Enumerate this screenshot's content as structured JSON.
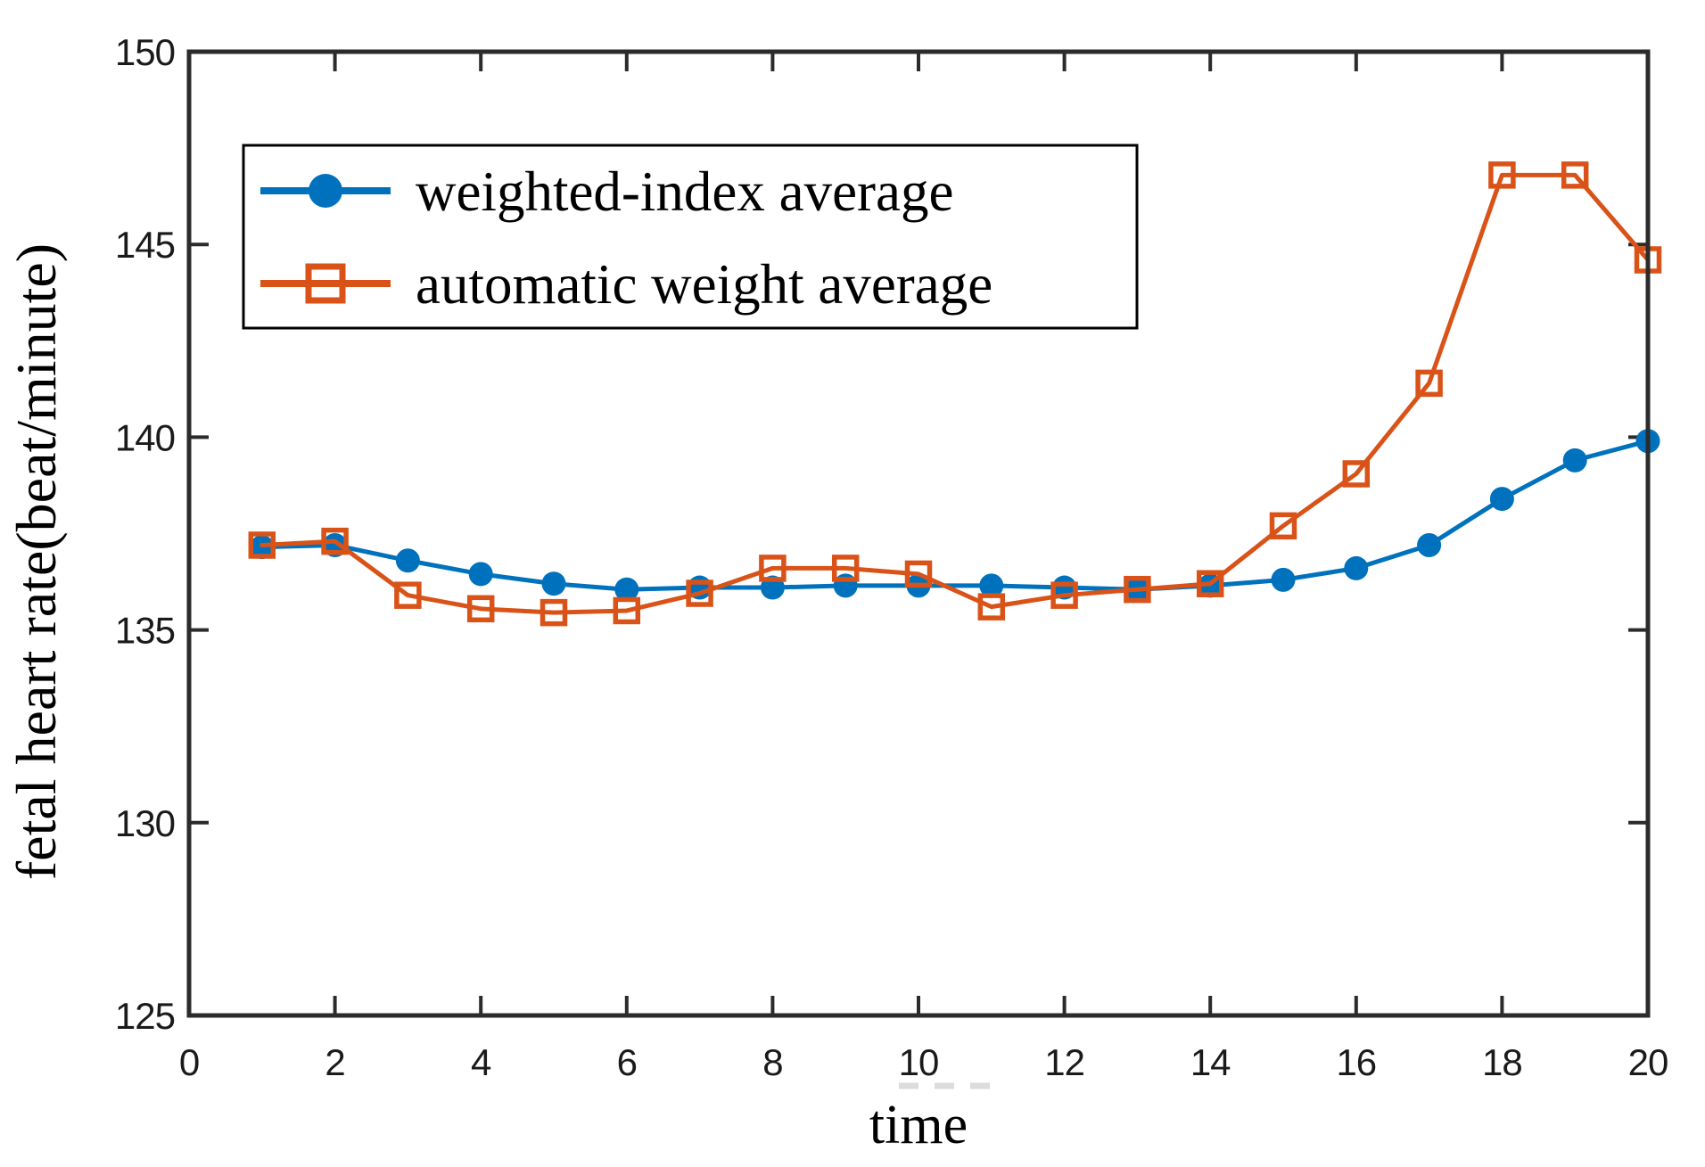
{
  "figure": {
    "background": "#ffffff",
    "axis_color": "#2b2b2b"
  },
  "chart_data": {
    "type": "line",
    "title": "",
    "xlabel": "time",
    "ylabel": "fetal heart rate(beat/minute)",
    "xlim": [
      0,
      20
    ],
    "ylim": [
      125,
      150
    ],
    "xticks": [
      0,
      2,
      4,
      6,
      8,
      10,
      12,
      14,
      16,
      18,
      20
    ],
    "yticks": [
      125,
      130,
      135,
      140,
      145,
      150
    ],
    "grid": false,
    "box": true,
    "tick_direction": "in",
    "legend_position": "upper-left-inside",
    "x": [
      1,
      2,
      3,
      4,
      5,
      6,
      7,
      8,
      9,
      10,
      11,
      12,
      13,
      14,
      15,
      16,
      17,
      18,
      19,
      20
    ],
    "series": [
      {
        "name": "weighted-index average",
        "color": "#0072BD",
        "marker": "filled-circle",
        "values": [
          137.15,
          137.2,
          136.8,
          136.45,
          136.2,
          136.05,
          136.1,
          136.1,
          136.15,
          136.15,
          136.15,
          136.1,
          136.05,
          136.15,
          136.3,
          136.6,
          137.2,
          138.4,
          139.4,
          139.9
        ]
      },
      {
        "name": "automatic weight average",
        "color": "#D95319",
        "marker": "open-square",
        "values": [
          137.2,
          137.3,
          135.9,
          135.55,
          135.45,
          135.5,
          135.95,
          136.6,
          136.6,
          136.45,
          135.6,
          135.9,
          136.05,
          136.2,
          137.7,
          139.05,
          141.4,
          146.8,
          146.8,
          144.6
        ]
      }
    ]
  }
}
